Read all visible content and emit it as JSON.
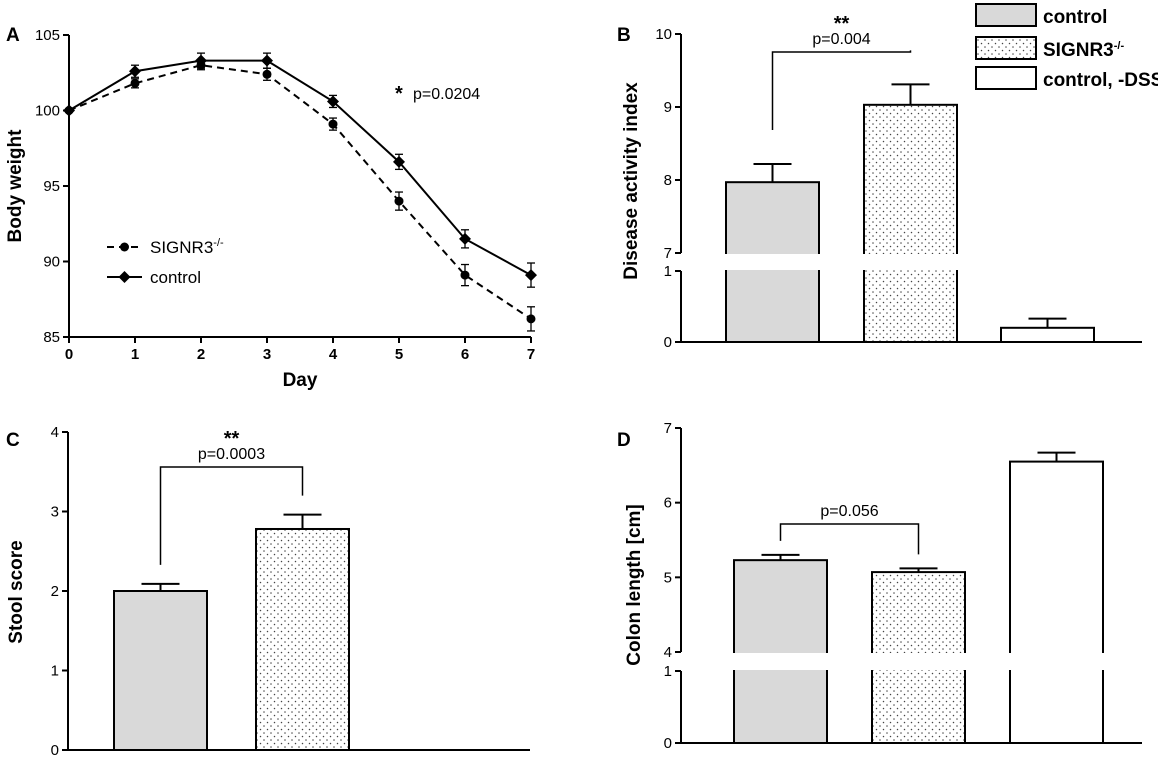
{
  "figure_legend": {
    "items": [
      {
        "label": "control",
        "fill": "#d9d9d9",
        "pattern": "none"
      },
      {
        "label": "SIGNR3",
        "superscript": "-/-",
        "fill": "#ffffff",
        "pattern": "dots"
      },
      {
        "label": "control, -DSS",
        "fill": "#ffffff",
        "pattern": "none"
      }
    ]
  },
  "chart_data": [
    {
      "panel": "A",
      "type": "line",
      "xlabel": "Day",
      "ylabel": "Body weight",
      "x": [
        0,
        1,
        2,
        3,
        4,
        5,
        6,
        7
      ],
      "xticks": [
        "0",
        "1",
        "2",
        "3",
        "4",
        "5",
        "6",
        "7"
      ],
      "ylim": [
        85,
        105
      ],
      "yticks": [
        "85",
        "90",
        "95",
        "100",
        "105"
      ],
      "series": [
        {
          "name": "SIGNR3",
          "superscript": "-/-",
          "style": "dashed",
          "marker": "circle",
          "values": [
            100.0,
            101.8,
            103.0,
            102.4,
            99.1,
            94.0,
            89.1,
            86.2
          ],
          "errors": [
            0.1,
            0.3,
            0.3,
            0.4,
            0.4,
            0.6,
            0.7,
            0.8
          ]
        },
        {
          "name": "control",
          "style": "solid",
          "marker": "diamond",
          "values": [
            100.0,
            102.6,
            103.3,
            103.3,
            100.6,
            96.6,
            91.5,
            89.1
          ],
          "errors": [
            0.1,
            0.4,
            0.5,
            0.5,
            0.4,
            0.5,
            0.6,
            0.8
          ]
        }
      ],
      "annotation": {
        "stars": "*",
        "text": "p=0.0204"
      }
    },
    {
      "panel": "B",
      "type": "bar",
      "ylabel": "Disease activity index",
      "categories": [
        "control",
        "SIGNR3-/-",
        "control, -DSS"
      ],
      "values": [
        7.97,
        9.03,
        0.2
      ],
      "errors": [
        0.25,
        0.28,
        0.13
      ],
      "broken_axis": {
        "lower": [
          0,
          1
        ],
        "upper": [
          7,
          10
        ]
      },
      "yticks_lower": [
        "0",
        "1"
      ],
      "yticks_upper": [
        "7",
        "8",
        "9",
        "10"
      ],
      "comparison": {
        "stars": "**",
        "text": "p=0.004",
        "between": [
          0,
          1
        ]
      }
    },
    {
      "panel": "C",
      "type": "bar",
      "ylabel": "Stool score",
      "categories": [
        "control",
        "SIGNR3-/-"
      ],
      "values": [
        2.0,
        2.78
      ],
      "errors": [
        0.09,
        0.18
      ],
      "ylim": [
        0,
        4
      ],
      "yticks": [
        "0",
        "1",
        "2",
        "3",
        "4"
      ],
      "comparison": {
        "stars": "**",
        "text": "p=0.0003",
        "between": [
          0,
          1
        ]
      }
    },
    {
      "panel": "D",
      "type": "bar",
      "ylabel": "Colon length [cm]",
      "categories": [
        "control",
        "SIGNR3-/-",
        "control, -DSS"
      ],
      "values": [
        5.23,
        5.07,
        6.55
      ],
      "errors": [
        0.07,
        0.05,
        0.12
      ],
      "broken_axis": {
        "lower": [
          0,
          1
        ],
        "upper": [
          4,
          7
        ]
      },
      "yticks_lower": [
        "0",
        "1"
      ],
      "yticks_upper": [
        "4",
        "5",
        "6",
        "7"
      ],
      "comparison": {
        "stars": "",
        "text": "p=0.056",
        "between": [
          0,
          1
        ]
      }
    }
  ]
}
